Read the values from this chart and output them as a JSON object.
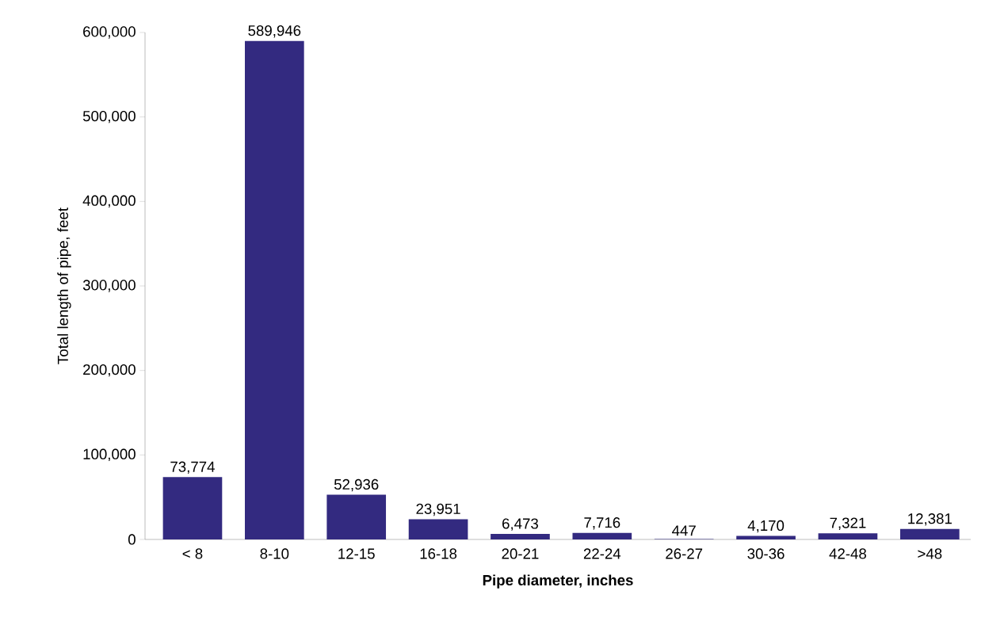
{
  "chart_data": {
    "type": "bar",
    "xlabel": "Pipe diameter, inches",
    "ylabel": "Total length of pipe, feet",
    "categories": [
      "< 8",
      "8-10",
      "12-15",
      "16-18",
      "20-21",
      "22-24",
      "26-27",
      "30-36",
      "42-48",
      ">48"
    ],
    "values": [
      73774,
      589946,
      52936,
      23951,
      6473,
      7716,
      447,
      4170,
      7321,
      12381
    ],
    "color": "#332a80",
    "ylim": [
      0,
      600000
    ],
    "yticks": [
      {
        "value": 0,
        "label": "0"
      },
      {
        "value": 100000,
        "label": "100,000"
      },
      {
        "value": 200000,
        "label": "200,000"
      },
      {
        "value": 300000,
        "label": "300,000"
      },
      {
        "value": 400000,
        "label": "400,000"
      },
      {
        "value": 500000,
        "label": "500,000"
      },
      {
        "value": 600000,
        "label": "600,000"
      }
    ],
    "value_labels": [
      "73,774",
      "589,946",
      "52,936",
      "23,951",
      "6,473",
      "7,716",
      "447",
      "4,170",
      "7,321",
      "12,381"
    ]
  }
}
